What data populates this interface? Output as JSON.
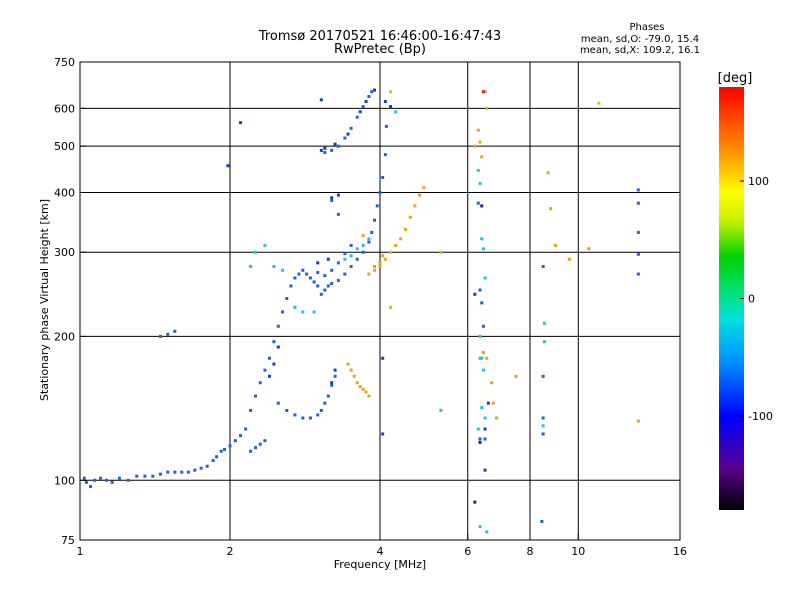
{
  "chart_data": {
    "type": "scatter",
    "title": "Tromsø 20170521 16:46:00-16:47:43",
    "subtitle": "RwPretec (Bp)",
    "xlabel": "Frequency [MHz]",
    "ylabel": "Stationary phase Virtual Height [km]",
    "x_scale": "log",
    "y_scale": "log",
    "xlim": [
      1,
      16
    ],
    "ylim": [
      75,
      750
    ],
    "x_ticks": [
      {
        "value": 1,
        "label": "1"
      },
      {
        "value": 2,
        "label": "2"
      },
      {
        "value": 4,
        "label": "4"
      },
      {
        "value": 6,
        "label": "6"
      },
      {
        "value": 8,
        "label": "8"
      },
      {
        "value": 10,
        "label": "10"
      },
      {
        "value": 16,
        "label": "16"
      }
    ],
    "y_ticks": [
      {
        "value": 75,
        "label": "75"
      },
      {
        "value": 100,
        "label": "100"
      },
      {
        "value": 200,
        "label": "200"
      },
      {
        "value": 300,
        "label": "300"
      },
      {
        "value": 400,
        "label": "400"
      },
      {
        "value": 500,
        "label": "500"
      },
      {
        "value": 600,
        "label": "600"
      },
      {
        "value": 750,
        "label": "750"
      }
    ],
    "x_gridlines": [
      2,
      4,
      6,
      8,
      10
    ],
    "y_gridlines": [
      100,
      200,
      300,
      400,
      500,
      600
    ],
    "grid": true,
    "legend": {
      "title": "Phases",
      "line1": "mean, sd,O: -79.0, 15.4",
      "line2": "mean, sd,X: 109.2, 16.1"
    },
    "colorbar": {
      "label": "[deg]",
      "range": [
        -180,
        180
      ],
      "ticks": [
        {
          "value": 100,
          "label": "100"
        },
        {
          "value": 0,
          "label": "0"
        },
        {
          "value": -100,
          "label": "-100"
        }
      ]
    },
    "series": [
      {
        "phase": -85,
        "color": "#1f5fe0",
        "points": [
          [
            1.02,
            101
          ],
          [
            1.03,
            99
          ],
          [
            1.05,
            97
          ],
          [
            1.07,
            100
          ],
          [
            1.1,
            101
          ],
          [
            1.13,
            100
          ],
          [
            1.16,
            99
          ],
          [
            1.2,
            101
          ],
          [
            1.25,
            100
          ],
          [
            1.3,
            102
          ],
          [
            1.35,
            102
          ],
          [
            1.4,
            102
          ],
          [
            1.45,
            103
          ],
          [
            1.5,
            104
          ],
          [
            1.55,
            104
          ],
          [
            1.6,
            104
          ],
          [
            1.65,
            104
          ],
          [
            1.7,
            105
          ],
          [
            1.75,
            106
          ],
          [
            1.8,
            107
          ],
          [
            1.85,
            110
          ],
          [
            1.88,
            112
          ],
          [
            1.92,
            115
          ],
          [
            1.95,
            116
          ],
          [
            2.0,
            118
          ],
          [
            2.05,
            121
          ],
          [
            2.1,
            124
          ],
          [
            2.15,
            128
          ],
          [
            2.2,
            140
          ],
          [
            2.25,
            150
          ],
          [
            2.3,
            160
          ],
          [
            2.35,
            170
          ],
          [
            2.4,
            180
          ],
          [
            2.45,
            195
          ],
          [
            2.5,
            210
          ],
          [
            2.55,
            225
          ],
          [
            2.6,
            240
          ],
          [
            2.65,
            255
          ],
          [
            2.7,
            265
          ],
          [
            2.75,
            270
          ],
          [
            2.8,
            275
          ],
          [
            2.85,
            270
          ],
          [
            2.9,
            265
          ],
          [
            2.95,
            260
          ],
          [
            3.0,
            255
          ],
          [
            3.05,
            245
          ],
          [
            3.1,
            250
          ],
          [
            3.15,
            255
          ],
          [
            3.2,
            258
          ],
          [
            3.3,
            262
          ],
          [
            3.4,
            270
          ],
          [
            3.5,
            280
          ],
          [
            3.6,
            290
          ],
          [
            3.7,
            300
          ],
          [
            3.8,
            315
          ],
          [
            3.85,
            330
          ],
          [
            3.9,
            350
          ],
          [
            3.95,
            375
          ],
          [
            4.0,
            400
          ],
          [
            4.05,
            430
          ],
          [
            4.1,
            480
          ],
          [
            4.12,
            550
          ],
          [
            3.1,
            485
          ],
          [
            3.2,
            490
          ],
          [
            3.3,
            500
          ],
          [
            3.4,
            520
          ],
          [
            3.5,
            545
          ],
          [
            3.6,
            575
          ],
          [
            3.7,
            605
          ],
          [
            3.8,
            635
          ],
          [
            3.85,
            650
          ],
          [
            2.5,
            145
          ],
          [
            2.6,
            140
          ],
          [
            2.7,
            137
          ],
          [
            2.8,
            135
          ],
          [
            2.9,
            135
          ],
          [
            3.0,
            137
          ],
          [
            3.05,
            140
          ],
          [
            3.1,
            145
          ],
          [
            3.15,
            150
          ],
          [
            3.2,
            158
          ],
          [
            3.25,
            165
          ],
          [
            3.0,
            272
          ],
          [
            3.1,
            268
          ],
          [
            3.2,
            275
          ],
          [
            3.3,
            285
          ],
          [
            3.4,
            298
          ],
          [
            3.5,
            310
          ],
          [
            1.45,
            200
          ],
          [
            1.5,
            202
          ],
          [
            1.55,
            205
          ],
          [
            2.2,
            115
          ],
          [
            2.25,
            117
          ],
          [
            2.3,
            119
          ],
          [
            2.35,
            121
          ],
          [
            3.2,
            385
          ],
          [
            3.3,
            360
          ],
          [
            6.3,
            380
          ],
          [
            6.35,
            250
          ],
          [
            6.4,
            235
          ],
          [
            6.45,
            210
          ],
          [
            8.5,
            280
          ],
          [
            8.5,
            165
          ],
          [
            8.5,
            135
          ],
          [
            8.5,
            125
          ],
          [
            8.45,
            82
          ],
          [
            13.2,
            405
          ],
          [
            13.2,
            380
          ],
          [
            13.2,
            330
          ],
          [
            13.2,
            297
          ],
          [
            13.2,
            270
          ],
          [
            6.35,
            122
          ],
          [
            6.5,
            122
          ]
        ]
      },
      {
        "phase": -105,
        "color": "#1040c8",
        "points": [
          [
            3.05,
            490
          ],
          [
            3.1,
            495
          ],
          [
            3.25,
            505
          ],
          [
            3.45,
            530
          ],
          [
            3.65,
            590
          ],
          [
            3.75,
            620
          ],
          [
            3.9,
            655
          ],
          [
            2.4,
            165
          ],
          [
            2.45,
            175
          ],
          [
            2.5,
            190
          ],
          [
            3.0,
            285
          ],
          [
            3.15,
            290
          ],
          [
            3.05,
            625
          ],
          [
            2.1,
            560
          ],
          [
            1.98,
            455
          ],
          [
            3.2,
            390
          ],
          [
            3.3,
            395
          ],
          [
            4.1,
            620
          ],
          [
            4.2,
            605
          ],
          [
            6.5,
            105
          ],
          [
            6.2,
            245
          ],
          [
            4.05,
            180
          ],
          [
            3.2,
            160
          ],
          [
            3.25,
            170
          ],
          [
            4.05,
            125
          ],
          [
            6.6,
            145
          ],
          [
            6.5,
            128
          ]
        ]
      },
      {
        "phase": -30,
        "color": "#20c0e8",
        "points": [
          [
            2.2,
            280
          ],
          [
            2.25,
            300
          ],
          [
            2.35,
            310
          ],
          [
            2.45,
            280
          ],
          [
            2.55,
            275
          ],
          [
            2.7,
            230
          ],
          [
            2.8,
            225
          ],
          [
            3.4,
            290
          ],
          [
            3.5,
            295
          ],
          [
            3.6,
            305
          ],
          [
            3.7,
            310
          ],
          [
            3.8,
            320
          ],
          [
            4.3,
            590
          ],
          [
            6.3,
            445
          ],
          [
            6.35,
            418
          ],
          [
            6.4,
            320
          ],
          [
            6.45,
            305
          ],
          [
            6.5,
            265
          ],
          [
            6.35,
            200
          ],
          [
            6.4,
            180
          ],
          [
            6.45,
            170
          ],
          [
            6.5,
            135
          ],
          [
            6.35,
            80
          ],
          [
            6.55,
            78
          ],
          [
            8.55,
            213
          ],
          [
            8.55,
            195
          ],
          [
            8.5,
            130
          ],
          [
            6.3,
            128
          ],
          [
            6.4,
            142
          ],
          [
            5.3,
            140
          ],
          [
            2.95,
            225
          ],
          [
            6.35,
            180
          ]
        ]
      },
      {
        "phase": 110,
        "color": "#f0a010",
        "points": [
          [
            3.8,
            270
          ],
          [
            3.9,
            275
          ],
          [
            4.0,
            280
          ],
          [
            4.1,
            290
          ],
          [
            4.2,
            300
          ],
          [
            4.3,
            310
          ],
          [
            4.4,
            320
          ],
          [
            4.5,
            335
          ],
          [
            4.6,
            355
          ],
          [
            4.7,
            375
          ],
          [
            4.8,
            395
          ],
          [
            4.9,
            410
          ],
          [
            3.9,
            280
          ],
          [
            4.0,
            285
          ],
          [
            4.05,
            295
          ],
          [
            3.45,
            175
          ],
          [
            3.5,
            170
          ],
          [
            3.55,
            165
          ],
          [
            3.6,
            160
          ],
          [
            3.65,
            157
          ],
          [
            3.7,
            155
          ],
          [
            3.75,
            153
          ],
          [
            3.8,
            150
          ],
          [
            6.2,
            500
          ],
          [
            6.3,
            540
          ],
          [
            6.35,
            510
          ],
          [
            6.4,
            475
          ],
          [
            6.55,
            600
          ],
          [
            6.5,
            650
          ],
          [
            5.3,
            300
          ],
          [
            6.45,
            185
          ],
          [
            6.55,
            180
          ],
          [
            6.7,
            160
          ],
          [
            6.75,
            145
          ],
          [
            6.85,
            135
          ],
          [
            7.5,
            165
          ],
          [
            8.7,
            440
          ],
          [
            8.8,
            370
          ],
          [
            9.0,
            310
          ],
          [
            9.6,
            290
          ],
          [
            10.5,
            305
          ],
          [
            13.2,
            133
          ],
          [
            3.7,
            325
          ]
        ]
      },
      {
        "phase": 30,
        "color": "#90e020",
        "points": [
          [
            4.2,
            230
          ],
          [
            11.0,
            615
          ],
          [
            4.2,
            650
          ]
        ]
      },
      {
        "phase": -140,
        "color": "#401080",
        "points": [
          [
            6.35,
            120
          ],
          [
            6.4,
            375
          ],
          [
            6.2,
            90
          ]
        ]
      },
      {
        "phase": 170,
        "color": "#e02020",
        "points": [
          [
            6.45,
            650
          ]
        ]
      }
    ]
  }
}
